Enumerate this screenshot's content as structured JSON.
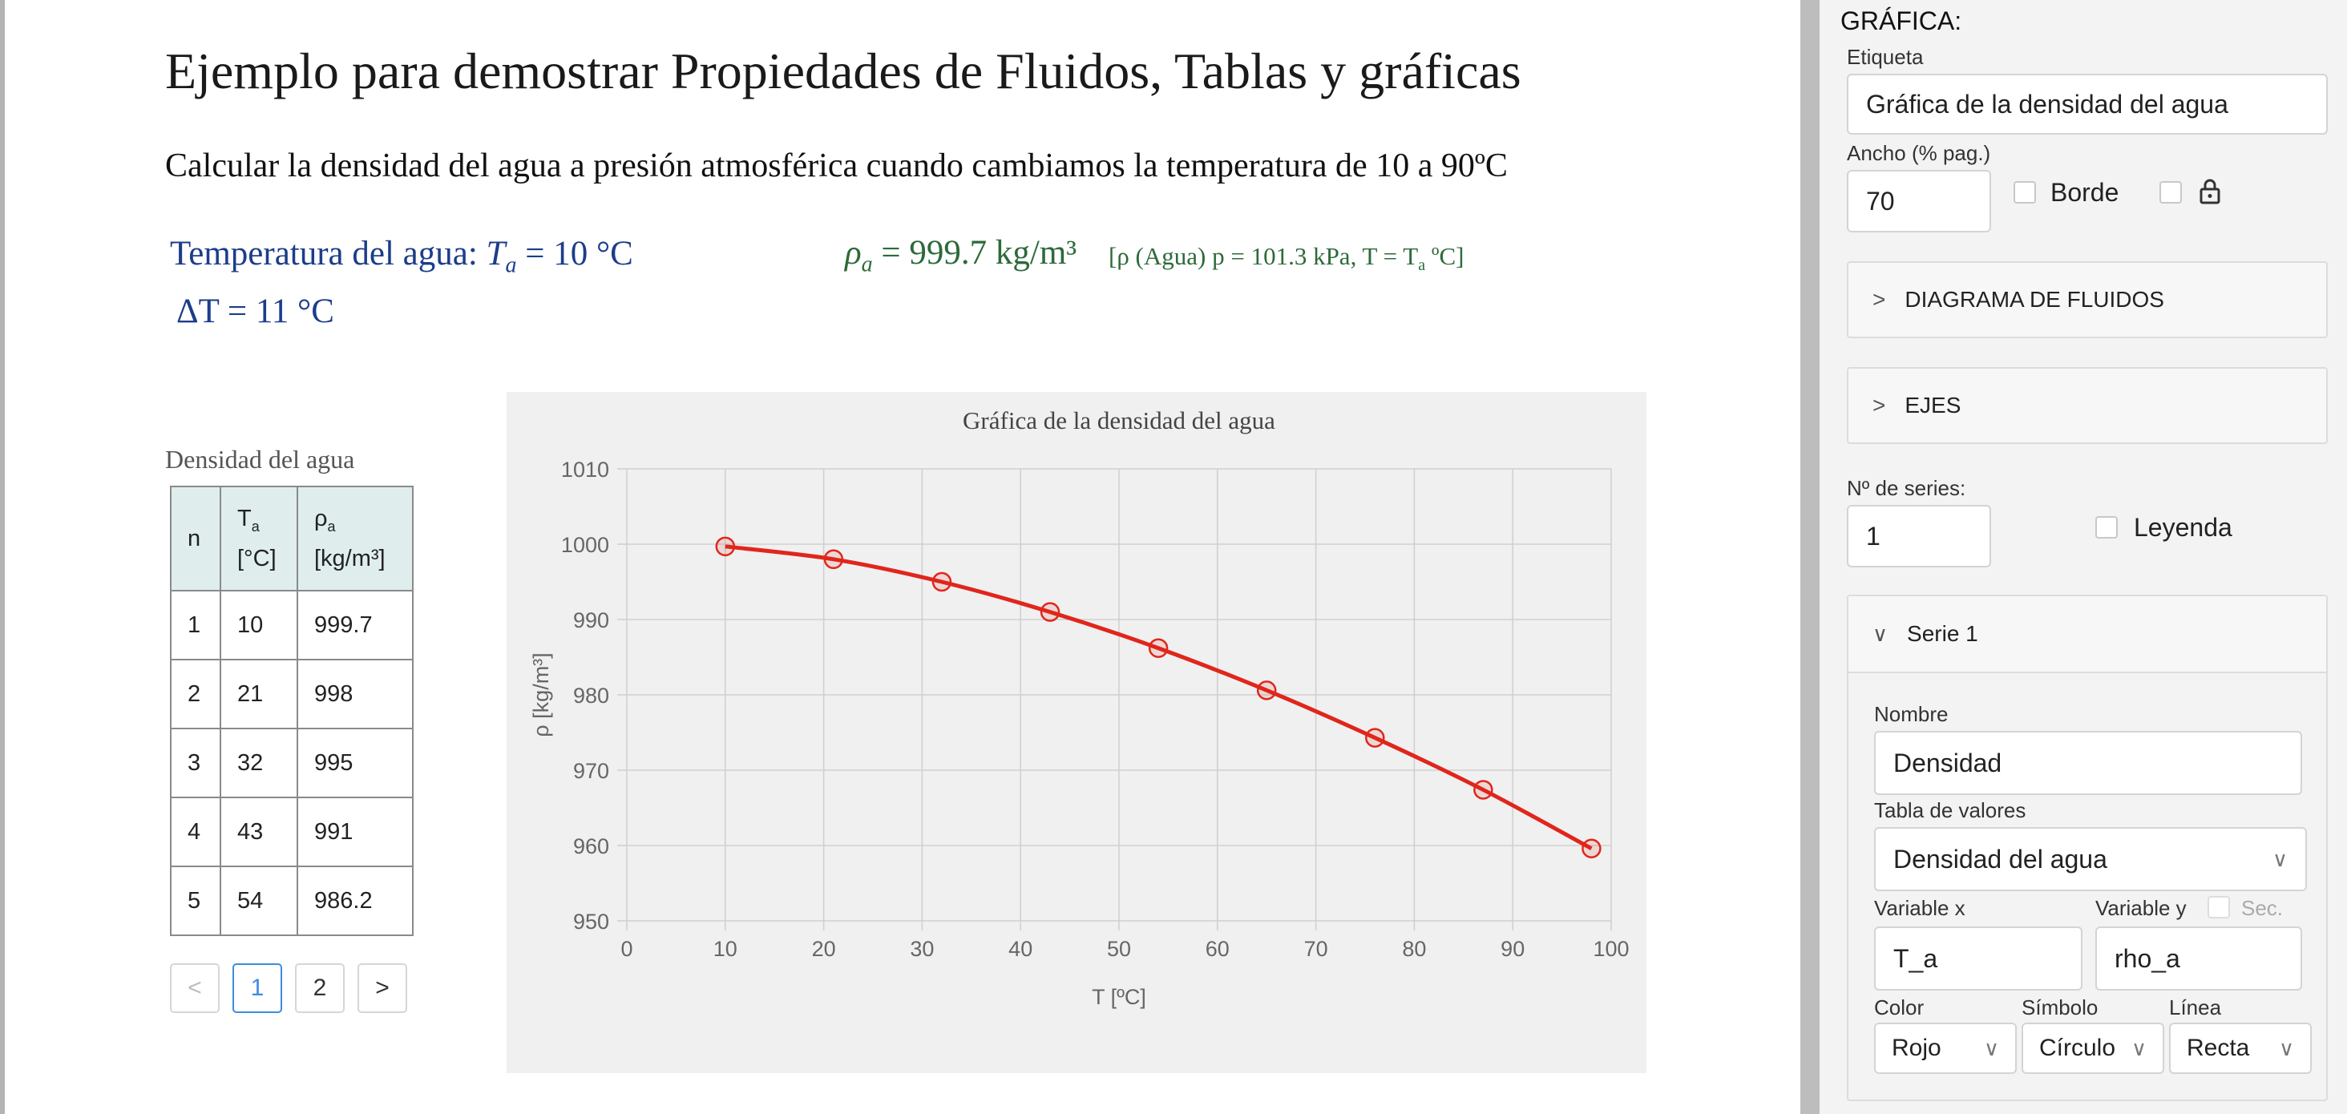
{
  "document": {
    "title": "Ejemplo para demostrar Propiedades de Fluidos, Tablas y gráficas",
    "subtitle": "Calcular la densidad del agua a presión atmosférica cuando cambiamos la temperatura de 10 a 90ºC",
    "temp_label": "Temperatura del agua: ",
    "temp_symbol": "T",
    "temp_sub": "a",
    "temp_value": " = 10 °C",
    "dt_expr": "ΔT = 11 °C",
    "rho_symbol": "ρ",
    "rho_sub": "a",
    "rho_value": " = 999.7 kg/m³",
    "rho_note_pre": "[ρ (Agua) p = 101.3 kPa, T = T",
    "rho_note_sub": "a",
    "rho_note_post": " ºC]"
  },
  "table": {
    "caption": "Densidad del agua",
    "headers": [
      "n",
      "Ta [°C]",
      "ρa [kg/m³]"
    ],
    "header_parts": {
      "t_main": "T",
      "t_sub": "a",
      "t_unit": "[°C]",
      "r_main": "ρ",
      "r_sub": "a",
      "r_unit": "[kg/m³]"
    },
    "rows": [
      [
        "1",
        "10",
        "999.7"
      ],
      [
        "2",
        "21",
        "998"
      ],
      [
        "3",
        "32",
        "995"
      ],
      [
        "4",
        "43",
        "991"
      ],
      [
        "5",
        "54",
        "986.2"
      ]
    ],
    "pagination": {
      "prev": "<",
      "pages": [
        "1",
        "2"
      ],
      "current": "1",
      "next": ">"
    }
  },
  "chart_data": {
    "type": "line",
    "title": "Gráfica de la densidad del agua",
    "xlabel": "T [ºC]",
    "ylabel": "ρ [kg/m³]",
    "xlim": [
      0,
      100
    ],
    "ylim": [
      950,
      1010
    ],
    "x_ticks": [
      "0",
      "10",
      "20",
      "30",
      "40",
      "50",
      "60",
      "70",
      "80",
      "90",
      "100"
    ],
    "y_ticks": [
      "950",
      "960",
      "970",
      "980",
      "990",
      "1000",
      "1010"
    ],
    "grid": true,
    "legend": false,
    "series": [
      {
        "color": "#e0261c",
        "marker": "circle",
        "x": [
          10,
          21,
          32,
          43,
          54,
          65,
          76,
          87,
          98
        ],
        "y": [
          999.7,
          998,
          995,
          991,
          986.2,
          980.6,
          974.3,
          967.4,
          959.6
        ]
      }
    ]
  },
  "panel": {
    "heading": "GRÁFICA:",
    "etiqueta_label": "Etiqueta",
    "etiqueta_value": "Gráfica de la densidad del agua",
    "ancho_label": "Ancho (% pag.)",
    "ancho_value": "70",
    "borde_label": "Borde",
    "lock_icon": "lock-icon",
    "acc1": "DIAGRAMA DE FLUIDOS",
    "acc2": "EJES",
    "nseries_label": "Nº de series:",
    "nseries_value": "1",
    "leyenda_label": "Leyenda",
    "serie_title": "Serie 1",
    "nombre_label": "Nombre",
    "nombre_value": "Densidad",
    "tabla_label": "Tabla de valores",
    "tabla_value": "Densidad del agua",
    "varx_label": "Variable x",
    "vary_label": "Variable y",
    "sec_label": "Sec.",
    "varx_value": "T_a",
    "vary_value": "rho_a",
    "color_label": "Color",
    "simbolo_label": "Símbolo",
    "linea_label": "Línea",
    "color_value": "Rojo",
    "simbolo_value": "Círculo",
    "linea_value": "Recta",
    "chev_closed": ">",
    "chev_open": "∨",
    "select_arrow": "∨"
  }
}
